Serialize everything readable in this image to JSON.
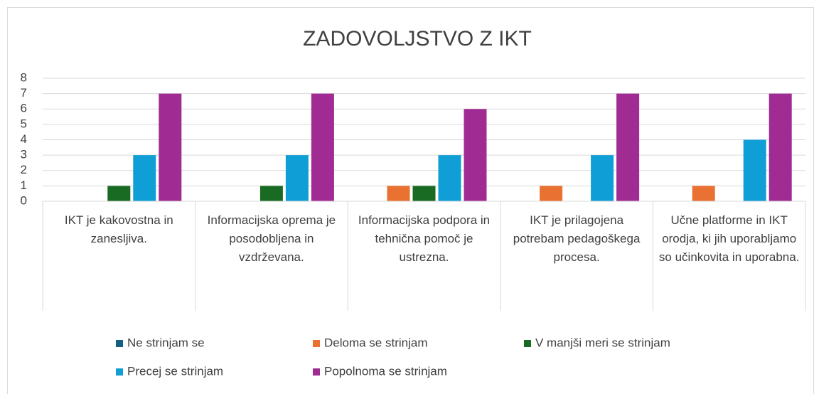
{
  "chart_data": {
    "type": "bar",
    "title": "ZADOVOLJSTVO Z IKT",
    "categories": [
      "IKT je kakovostna in zanesljiva.",
      "Informacijska oprema je posodobljena in vzdrževana.",
      "Informacijska podpora in tehnična pomoč je ustrezna.",
      "IKT je prilagojena potrebam pedagoškega procesa.",
      "Učne platforme in IKT orodja, ki jih uporabljamo so učinkovita in uporabna."
    ],
    "series": [
      {
        "name": "Ne strinjam se",
        "color": "#156082",
        "values": [
          0,
          0,
          0,
          0,
          0
        ]
      },
      {
        "name": "Deloma se strinjam",
        "color": "#e97132",
        "values": [
          0,
          0,
          1,
          1,
          1
        ]
      },
      {
        "name": "V manjši meri se strinjam",
        "color": "#196b24",
        "values": [
          1,
          1,
          1,
          0,
          0
        ]
      },
      {
        "name": "Precej se strinjam",
        "color": "#0f9ed5",
        "values": [
          3,
          3,
          3,
          3,
          4
        ]
      },
      {
        "name": "Popolnoma se strinjam",
        "color": "#a02b93",
        "values": [
          7,
          7,
          6,
          7,
          7
        ]
      }
    ],
    "ylim": [
      0,
      8
    ],
    "yticks": [
      0,
      1,
      2,
      3,
      4,
      5,
      6,
      7,
      8
    ],
    "grid": true,
    "legend": "bottom"
  }
}
